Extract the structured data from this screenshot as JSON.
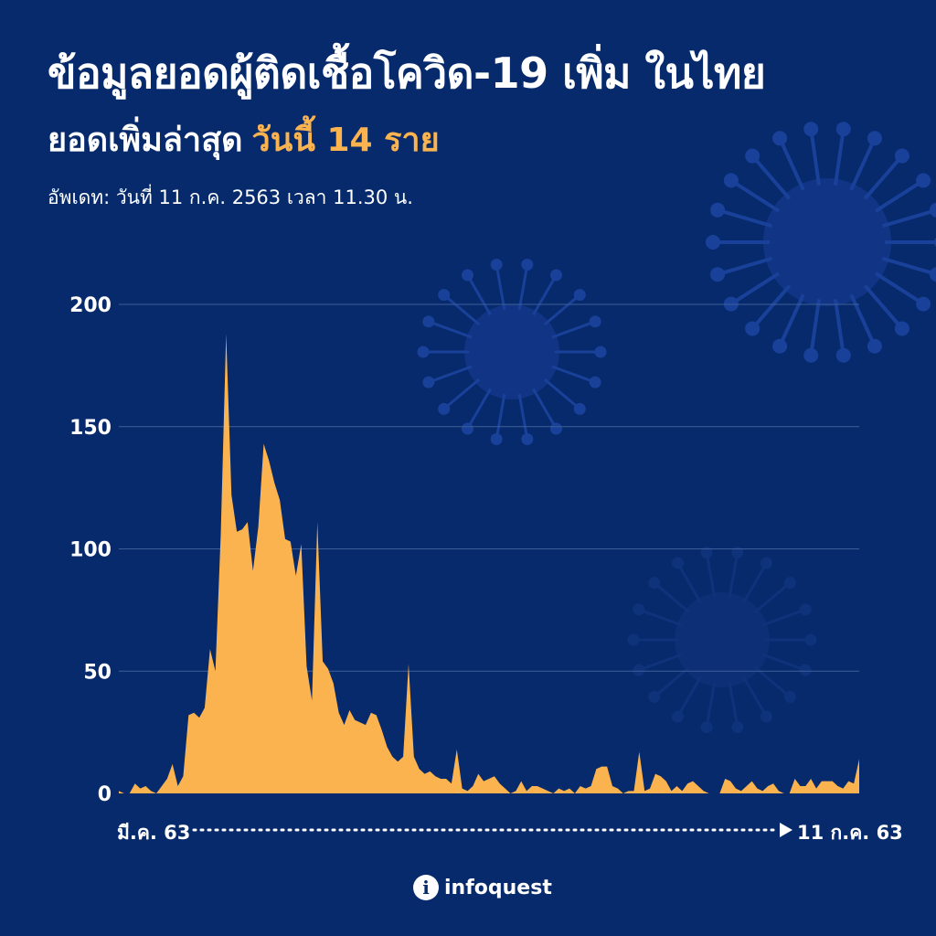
{
  "header": {
    "title": "ข้อมูลยอดผู้ติดเชื้อโควิด-19 เพิ่ม ในไทย",
    "subtitle_prefix": "ยอดเพิ่มล่าสุด",
    "subtitle_highlight": "วันนี้ 14 ราย",
    "updated": "อัพเดท: วันที่ 11 ก.ค. 2563 เวลา 11.30 น."
  },
  "colors": {
    "background": "#062a6b",
    "area": "#fbb34f",
    "text": "#ffffff",
    "highlight": "#fbb34f",
    "grid": "#3f5f9a"
  },
  "chart_data": {
    "type": "area",
    "title": "",
    "xlabel": "",
    "ylabel": "",
    "ylim": [
      0,
      200
    ],
    "yticks": [
      0,
      50,
      100,
      150,
      200
    ],
    "x_start_label": "มี.ค. 63",
    "x_end_label": "11 ก.ค. 63",
    "grid": true,
    "values": [
      1,
      0,
      0,
      4,
      2,
      3,
      1,
      0,
      3,
      6,
      12,
      3,
      7,
      32,
      33,
      31,
      35,
      59,
      50,
      106,
      188,
      122,
      107,
      108,
      111,
      91,
      109,
      143,
      136,
      127,
      120,
      104,
      103,
      89,
      102,
      52,
      38,
      111,
      54,
      51,
      45,
      33,
      28,
      34,
      30,
      29,
      28,
      33,
      32,
      26,
      19,
      15,
      13,
      15,
      53,
      15,
      10,
      8,
      9,
      7,
      6,
      6,
      4,
      18,
      2,
      1,
      3,
      8,
      5,
      6,
      7,
      4,
      2,
      0,
      1,
      5,
      1,
      3,
      3,
      2,
      1,
      0,
      2,
      1,
      2,
      0,
      3,
      2,
      3,
      10,
      11,
      11,
      3,
      2,
      0,
      1,
      1,
      17,
      1,
      2,
      8,
      7,
      5,
      1,
      3,
      1,
      4,
      5,
      3,
      1,
      0,
      0,
      0,
      6,
      5,
      2,
      1,
      3,
      5,
      2,
      1,
      3,
      4,
      1,
      0,
      0,
      6,
      3,
      3,
      6,
      2,
      5,
      5,
      5,
      3,
      2,
      5,
      4,
      14
    ],
    "annotations": []
  },
  "logo": {
    "mark": "i",
    "text": "infoquest"
  }
}
